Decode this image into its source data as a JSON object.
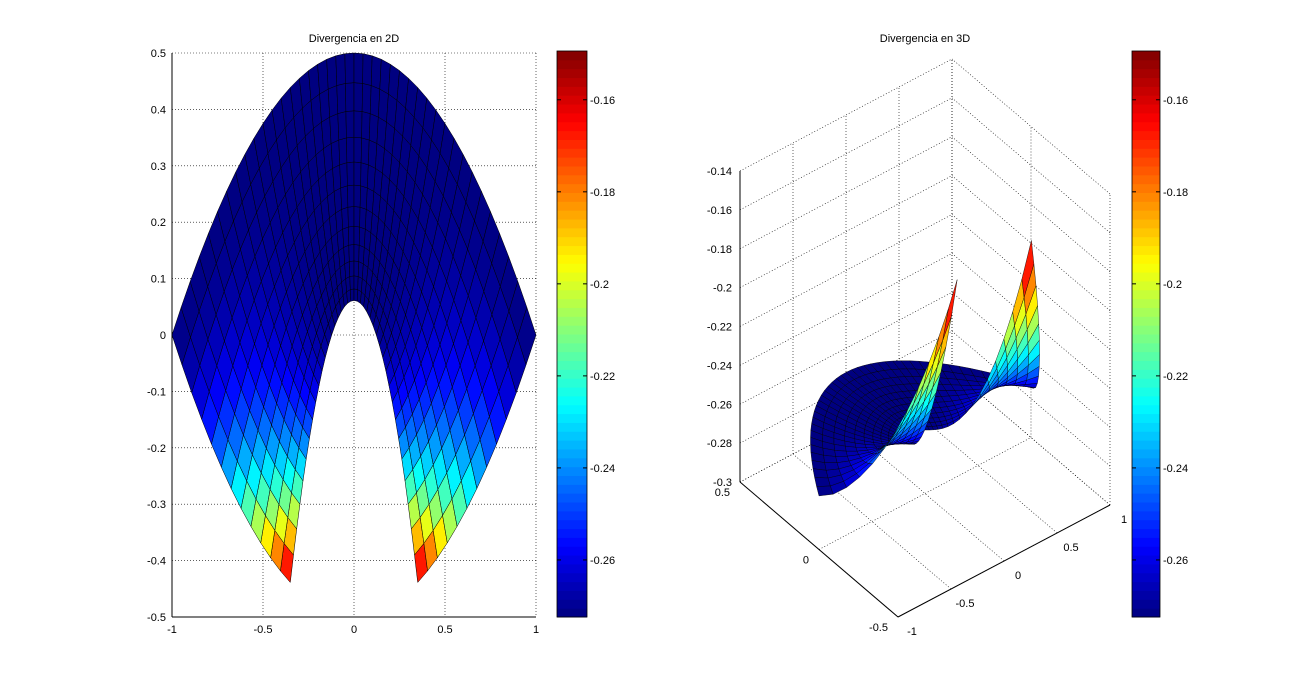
{
  "chart_data": [
    {
      "type": "heatmap",
      "title": "Divergencia en 2D",
      "xlim": [
        -1,
        1
      ],
      "ylim": [
        -0.5,
        0.5
      ],
      "xticks": [
        "-1",
        "-0.5",
        "0",
        "0.5",
        "1"
      ],
      "yticks": [
        "-0.5",
        "-0.4",
        "-0.3",
        "-0.2",
        "-0.1",
        "0",
        "0.1",
        "0.2",
        "0.3",
        "0.4",
        "0.5"
      ],
      "grid": true,
      "colormap": "jet",
      "clim": [
        -0.2724,
        -0.1494
      ],
      "colorbar_ticks": [
        "-0.16",
        "-0.18",
        "-0.2",
        "-0.22",
        "-0.24",
        "-0.26"
      ]
    },
    {
      "type": "surface",
      "title": "Divergencia en 3D",
      "xlim": [
        -1,
        1
      ],
      "ylim": [
        -0.5,
        0.5
      ],
      "zlim": [
        -0.3,
        -0.14
      ],
      "xticks": [
        "-1",
        "-0.5",
        "0",
        "0.5",
        "1"
      ],
      "yticks": [
        "-0.5",
        "0",
        "0.5"
      ],
      "zticks": [
        "-0.3",
        "-0.28",
        "-0.26",
        "-0.24",
        "-0.22",
        "-0.2",
        "-0.18",
        "-0.16",
        "-0.14"
      ],
      "grid": true,
      "colormap": "jet",
      "clim": [
        -0.2724,
        -0.1494
      ],
      "colorbar_ticks": [
        "-0.16",
        "-0.18",
        "-0.2",
        "-0.22",
        "-0.24",
        "-0.26"
      ]
    }
  ]
}
